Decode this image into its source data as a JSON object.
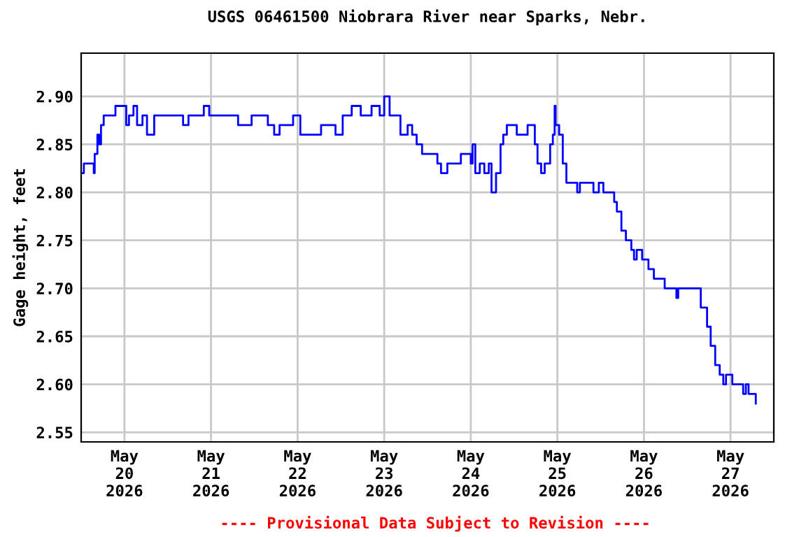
{
  "chart_data": {
    "type": "step",
    "title": "USGS 06461500 Niobrara River near Sparks, Nebr.",
    "ylabel": "Gage height, feet",
    "annotations": [
      "---- Provisional Data Subject to Revision ----"
    ],
    "x": [
      "2026-05-19T12:00",
      "2026-05-19T12:45",
      "2026-05-19T15:00",
      "2026-05-19T15:30",
      "2026-05-19T15:45",
      "2026-05-19T16:30",
      "2026-05-19T17:00",
      "2026-05-19T17:30",
      "2026-05-19T18:15",
      "2026-05-19T20:30",
      "2026-05-19T21:30",
      "2026-05-19T23:30",
      "2026-05-20T00:30",
      "2026-05-20T01:15",
      "2026-05-20T02:30",
      "2026-05-20T03:30",
      "2026-05-20T05:00",
      "2026-05-20T06:15",
      "2026-05-20T08:15",
      "2026-05-20T12:00",
      "2026-05-20T15:00",
      "2026-05-20T16:15",
      "2026-05-20T17:45",
      "2026-05-20T22:00",
      "2026-05-20T23:30",
      "2026-05-21T03:30",
      "2026-05-21T07:30",
      "2026-05-21T09:15",
      "2026-05-21T11:15",
      "2026-05-21T14:00",
      "2026-05-21T15:45",
      "2026-05-21T17:30",
      "2026-05-21T19:00",
      "2026-05-21T21:00",
      "2026-05-21T22:45",
      "2026-05-22T00:45",
      "2026-05-22T03:30",
      "2026-05-22T06:30",
      "2026-05-22T10:30",
      "2026-05-22T12:30",
      "2026-05-22T15:00",
      "2026-05-22T17:30",
      "2026-05-22T19:00",
      "2026-05-22T20:30",
      "2026-05-22T22:45",
      "2026-05-23T00:00",
      "2026-05-23T01:30",
      "2026-05-23T03:00",
      "2026-05-23T04:30",
      "2026-05-23T06:30",
      "2026-05-23T07:45",
      "2026-05-23T09:00",
      "2026-05-23T10:30",
      "2026-05-23T13:30",
      "2026-05-23T14:45",
      "2026-05-23T15:45",
      "2026-05-23T17:30",
      "2026-05-23T19:30",
      "2026-05-23T21:15",
      "2026-05-23T22:45",
      "2026-05-24T00:00",
      "2026-05-24T00:30",
      "2026-05-24T01:15",
      "2026-05-24T02:30",
      "2026-05-24T03:45",
      "2026-05-24T05:00",
      "2026-05-24T05:45",
      "2026-05-24T07:00",
      "2026-05-24T08:15",
      "2026-05-24T09:00",
      "2026-05-24T10:00",
      "2026-05-24T12:00",
      "2026-05-24T12:45",
      "2026-05-24T14:30",
      "2026-05-24T15:45",
      "2026-05-24T17:45",
      "2026-05-24T18:30",
      "2026-05-24T19:30",
      "2026-05-24T20:30",
      "2026-05-24T22:00",
      "2026-05-24T22:45",
      "2026-05-24T23:15",
      "2026-05-24T23:30",
      "2026-05-25T00:30",
      "2026-05-25T01:30",
      "2026-05-25T02:30",
      "2026-05-25T04:15",
      "2026-05-25T05:30",
      "2026-05-25T06:15",
      "2026-05-25T08:15",
      "2026-05-25T10:00",
      "2026-05-25T11:30",
      "2026-05-25T12:45",
      "2026-05-25T15:00",
      "2026-05-25T15:45",
      "2026-05-25T16:30",
      "2026-05-25T17:45",
      "2026-05-25T19:00",
      "2026-05-25T20:30",
      "2026-05-25T21:15",
      "2026-05-25T22:00",
      "2026-05-25T23:30",
      "2026-05-26T01:15",
      "2026-05-26T02:45",
      "2026-05-26T04:30",
      "2026-05-26T05:45",
      "2026-05-26T07:30",
      "2026-05-26T09:00",
      "2026-05-26T09:30",
      "2026-05-26T11:15",
      "2026-05-26T13:30",
      "2026-05-26T15:00",
      "2026-05-26T15:45",
      "2026-05-26T17:30",
      "2026-05-26T18:30",
      "2026-05-26T19:45",
      "2026-05-26T21:00",
      "2026-05-26T22:00",
      "2026-05-26T22:45",
      "2026-05-27T00:30",
      "2026-05-27T02:45",
      "2026-05-27T03:30",
      "2026-05-27T04:15",
      "2026-05-27T05:00",
      "2026-05-27T06:30",
      "2026-05-27T07:00"
    ],
    "series": [
      {
        "color": "#0000ff",
        "values": [
          2.82,
          2.83,
          2.83,
          2.82,
          2.84,
          2.86,
          2.85,
          2.87,
          2.88,
          2.88,
          2.89,
          2.89,
          2.87,
          2.88,
          2.89,
          2.87,
          2.88,
          2.86,
          2.88,
          2.88,
          2.88,
          2.87,
          2.88,
          2.89,
          2.88,
          2.88,
          2.87,
          2.87,
          2.88,
          2.88,
          2.87,
          2.86,
          2.87,
          2.87,
          2.88,
          2.86,
          2.86,
          2.87,
          2.86,
          2.88,
          2.89,
          2.88,
          2.88,
          2.89,
          2.88,
          2.9,
          2.88,
          2.88,
          2.86,
          2.87,
          2.86,
          2.85,
          2.84,
          2.84,
          2.83,
          2.82,
          2.83,
          2.83,
          2.84,
          2.84,
          2.83,
          2.85,
          2.82,
          2.83,
          2.82,
          2.83,
          2.8,
          2.82,
          2.85,
          2.86,
          2.87,
          2.87,
          2.86,
          2.86,
          2.87,
          2.85,
          2.83,
          2.82,
          2.83,
          2.85,
          2.86,
          2.89,
          2.87,
          2.86,
          2.83,
          2.81,
          2.81,
          2.8,
          2.81,
          2.81,
          2.8,
          2.81,
          2.8,
          2.8,
          2.79,
          2.78,
          2.76,
          2.75,
          2.74,
          2.73,
          2.74,
          2.73,
          2.72,
          2.71,
          2.71,
          2.7,
          2.7,
          2.69,
          2.7,
          2.7,
          2.7,
          2.7,
          2.68,
          2.66,
          2.64,
          2.62,
          2.61,
          2.6,
          2.61,
          2.6,
          2.6,
          2.59,
          2.6,
          2.59,
          2.59,
          2.58
        ]
      }
    ],
    "xlim": [
      "2026-05-19T12:00",
      "2026-05-27T12:00"
    ],
    "ylim": [
      2.54,
      2.945
    ],
    "xticks": [
      {
        "value": "2026-05-20",
        "label": "May\n20\n2026"
      },
      {
        "value": "2026-05-21",
        "label": "May\n21\n2026"
      },
      {
        "value": "2026-05-22",
        "label": "May\n22\n2026"
      },
      {
        "value": "2026-05-23",
        "label": "May\n23\n2026"
      },
      {
        "value": "2026-05-24",
        "label": "May\n24\n2026"
      },
      {
        "value": "2026-05-25",
        "label": "May\n25\n2026"
      },
      {
        "value": "2026-05-26",
        "label": "May\n26\n2026"
      },
      {
        "value": "2026-05-27",
        "label": "May\n27\n2026"
      }
    ],
    "yticks": [
      {
        "value": 2.55,
        "label": "2.55"
      },
      {
        "value": 2.6,
        "label": "2.60"
      },
      {
        "value": 2.65,
        "label": "2.65"
      },
      {
        "value": 2.7,
        "label": "2.70"
      },
      {
        "value": 2.75,
        "label": "2.75"
      },
      {
        "value": 2.8,
        "label": "2.80"
      },
      {
        "value": 2.85,
        "label": "2.85"
      },
      {
        "value": 2.9,
        "label": "2.90"
      }
    ],
    "grid": true
  }
}
